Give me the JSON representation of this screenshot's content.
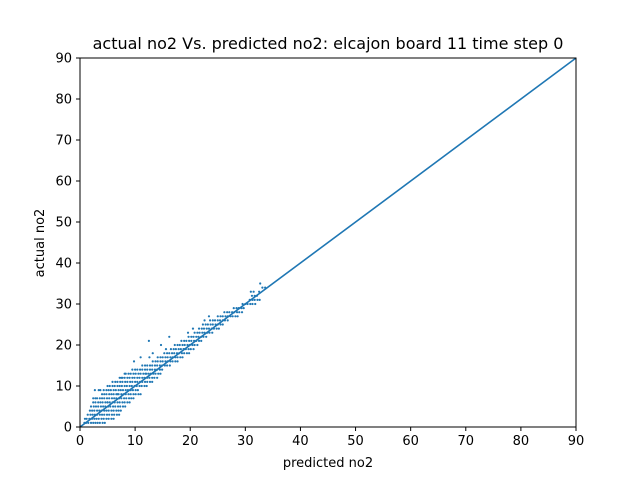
{
  "chart_data": {
    "type": "scatter",
    "title": "actual no2 Vs. predicted no2: elcajon board 11 time step 0",
    "xlabel": "predicted no2",
    "ylabel": "actual no2",
    "xlim": [
      0,
      90
    ],
    "ylim": [
      0,
      90
    ],
    "xticks": [
      0,
      10,
      20,
      30,
      40,
      50,
      60,
      70,
      80,
      90
    ],
    "yticks": [
      0,
      10,
      20,
      30,
      40,
      50,
      60,
      70,
      80,
      90
    ],
    "grid": false,
    "color": "#1f77b4",
    "reference_line": {
      "x": [
        0,
        90
      ],
      "y": [
        0,
        90
      ]
    },
    "points": [
      [
        1.1,
        1
      ],
      [
        1.5,
        1
      ],
      [
        2.0,
        1
      ],
      [
        2.4,
        1
      ],
      [
        2.8,
        1
      ],
      [
        3.2,
        1
      ],
      [
        3.6,
        1
      ],
      [
        4.1,
        1
      ],
      [
        4.5,
        1
      ],
      [
        0.8,
        1
      ],
      [
        1.2,
        2
      ],
      [
        1.7,
        2
      ],
      [
        2.2,
        2
      ],
      [
        2.6,
        2
      ],
      [
        3.0,
        2
      ],
      [
        3.4,
        2
      ],
      [
        3.9,
        2
      ],
      [
        4.3,
        2
      ],
      [
        4.8,
        2
      ],
      [
        5.2,
        2
      ],
      [
        5.7,
        2
      ],
      [
        6.1,
        2
      ],
      [
        0.9,
        2
      ],
      [
        1.4,
        3
      ],
      [
        1.9,
        3
      ],
      [
        2.3,
        3
      ],
      [
        2.7,
        3
      ],
      [
        3.1,
        3
      ],
      [
        3.6,
        3
      ],
      [
        4.0,
        3
      ],
      [
        4.4,
        3
      ],
      [
        4.9,
        3
      ],
      [
        5.3,
        3
      ],
      [
        5.8,
        3
      ],
      [
        6.2,
        3
      ],
      [
        6.7,
        3
      ],
      [
        7.1,
        3
      ],
      [
        1.8,
        4
      ],
      [
        2.2,
        4
      ],
      [
        2.6,
        4
      ],
      [
        3.1,
        4
      ],
      [
        3.5,
        4
      ],
      [
        3.9,
        4
      ],
      [
        4.4,
        4
      ],
      [
        4.8,
        4
      ],
      [
        5.2,
        4
      ],
      [
        5.7,
        4
      ],
      [
        6.1,
        4
      ],
      [
        6.6,
        4
      ],
      [
        7.0,
        4
      ],
      [
        7.4,
        4
      ],
      [
        2.0,
        5
      ],
      [
        2.5,
        5
      ],
      [
        2.9,
        5
      ],
      [
        3.3,
        5
      ],
      [
        3.8,
        5
      ],
      [
        4.2,
        5
      ],
      [
        4.6,
        5
      ],
      [
        5.1,
        5
      ],
      [
        5.5,
        5
      ],
      [
        6.0,
        5
      ],
      [
        6.4,
        5
      ],
      [
        6.9,
        5
      ],
      [
        7.3,
        5
      ],
      [
        7.8,
        5
      ],
      [
        8.2,
        5
      ],
      [
        2.4,
        6
      ],
      [
        2.8,
        6
      ],
      [
        3.3,
        6
      ],
      [
        3.7,
        6
      ],
      [
        4.1,
        6
      ],
      [
        4.6,
        6
      ],
      [
        5.0,
        6
      ],
      [
        5.4,
        6
      ],
      [
        5.9,
        6
      ],
      [
        6.3,
        6
      ],
      [
        6.8,
        6
      ],
      [
        7.2,
        6
      ],
      [
        7.7,
        6
      ],
      [
        8.1,
        6
      ],
      [
        8.6,
        6
      ],
      [
        9.0,
        6
      ],
      [
        3.1,
        7
      ],
      [
        3.6,
        7
      ],
      [
        4.0,
        7
      ],
      [
        4.4,
        7
      ],
      [
        4.9,
        7
      ],
      [
        5.3,
        7
      ],
      [
        5.8,
        7
      ],
      [
        6.2,
        7
      ],
      [
        6.6,
        7
      ],
      [
        7.1,
        7
      ],
      [
        7.5,
        7
      ],
      [
        8.0,
        7
      ],
      [
        8.4,
        7
      ],
      [
        8.9,
        7
      ],
      [
        9.3,
        7
      ],
      [
        9.7,
        7
      ],
      [
        2.4,
        7
      ],
      [
        2.8,
        7
      ],
      [
        4.0,
        8
      ],
      [
        4.4,
        8
      ],
      [
        4.8,
        8
      ],
      [
        5.3,
        8
      ],
      [
        5.7,
        8
      ],
      [
        6.1,
        8
      ],
      [
        6.6,
        8
      ],
      [
        7.0,
        8
      ],
      [
        7.5,
        8
      ],
      [
        7.9,
        8
      ],
      [
        8.3,
        8
      ],
      [
        8.8,
        8
      ],
      [
        9.2,
        8
      ],
      [
        9.7,
        8
      ],
      [
        10.1,
        8
      ],
      [
        10.6,
        8
      ],
      [
        11.0,
        8
      ],
      [
        4.3,
        9
      ],
      [
        4.8,
        9
      ],
      [
        5.2,
        9
      ],
      [
        5.6,
        9
      ],
      [
        6.1,
        9
      ],
      [
        6.5,
        9
      ],
      [
        7.0,
        9
      ],
      [
        7.4,
        9
      ],
      [
        7.8,
        9
      ],
      [
        8.3,
        9
      ],
      [
        8.7,
        9
      ],
      [
        9.2,
        9
      ],
      [
        9.6,
        9
      ],
      [
        10.1,
        9
      ],
      [
        10.5,
        9
      ],
      [
        3.7,
        9
      ],
      [
        5.0,
        10
      ],
      [
        5.4,
        10
      ],
      [
        5.9,
        10
      ],
      [
        6.3,
        10
      ],
      [
        6.8,
        10
      ],
      [
        7.2,
        10
      ],
      [
        7.6,
        10
      ],
      [
        8.1,
        10
      ],
      [
        8.5,
        10
      ],
      [
        9.0,
        10
      ],
      [
        9.4,
        10
      ],
      [
        9.9,
        10
      ],
      [
        10.3,
        10
      ],
      [
        10.8,
        10
      ],
      [
        11.2,
        10
      ],
      [
        11.7,
        10
      ],
      [
        12.1,
        10
      ],
      [
        5.9,
        11
      ],
      [
        6.4,
        11
      ],
      [
        6.8,
        11
      ],
      [
        7.3,
        11
      ],
      [
        7.7,
        11
      ],
      [
        8.2,
        11
      ],
      [
        8.6,
        11
      ],
      [
        9.1,
        11
      ],
      [
        9.5,
        11
      ],
      [
        10.0,
        11
      ],
      [
        10.4,
        11
      ],
      [
        10.9,
        11
      ],
      [
        11.3,
        11
      ],
      [
        11.8,
        11
      ],
      [
        12.2,
        11
      ],
      [
        12.7,
        11
      ],
      [
        13.1,
        11
      ],
      [
        7.2,
        12
      ],
      [
        7.7,
        12
      ],
      [
        8.1,
        12
      ],
      [
        8.6,
        12
      ],
      [
        9.0,
        12
      ],
      [
        9.5,
        12
      ],
      [
        9.9,
        12
      ],
      [
        10.4,
        12
      ],
      [
        10.8,
        12
      ],
      [
        11.3,
        12
      ],
      [
        11.7,
        12
      ],
      [
        12.2,
        12
      ],
      [
        12.6,
        12
      ],
      [
        13.1,
        12
      ],
      [
        13.5,
        12
      ],
      [
        14.0,
        12
      ],
      [
        8.3,
        13
      ],
      [
        8.8,
        13
      ],
      [
        9.2,
        13
      ],
      [
        9.7,
        13
      ],
      [
        10.1,
        13
      ],
      [
        10.6,
        13
      ],
      [
        11.0,
        13
      ],
      [
        11.5,
        13
      ],
      [
        11.9,
        13
      ],
      [
        12.4,
        13
      ],
      [
        12.8,
        13
      ],
      [
        13.3,
        13
      ],
      [
        13.7,
        13
      ],
      [
        14.2,
        13
      ],
      [
        14.6,
        13
      ],
      [
        9.5,
        14
      ],
      [
        10.0,
        14
      ],
      [
        10.4,
        14
      ],
      [
        10.9,
        14
      ],
      [
        11.3,
        14
      ],
      [
        11.8,
        14
      ],
      [
        12.2,
        14
      ],
      [
        12.7,
        14
      ],
      [
        13.1,
        14
      ],
      [
        13.6,
        14
      ],
      [
        14.0,
        14
      ],
      [
        14.5,
        14
      ],
      [
        14.9,
        14
      ],
      [
        11.3,
        15
      ],
      [
        11.8,
        15
      ],
      [
        12.2,
        15
      ],
      [
        12.7,
        15
      ],
      [
        13.1,
        15
      ],
      [
        13.6,
        15
      ],
      [
        14.0,
        15
      ],
      [
        14.5,
        15
      ],
      [
        14.9,
        15
      ],
      [
        15.4,
        15
      ],
      [
        15.8,
        15
      ],
      [
        16.3,
        15
      ],
      [
        13.2,
        16
      ],
      [
        13.7,
        16
      ],
      [
        14.1,
        16
      ],
      [
        14.6,
        16
      ],
      [
        15.0,
        16
      ],
      [
        15.5,
        16
      ],
      [
        15.9,
        16
      ],
      [
        16.4,
        16
      ],
      [
        16.8,
        16
      ],
      [
        17.3,
        16
      ],
      [
        17.7,
        16
      ],
      [
        14.1,
        17
      ],
      [
        14.6,
        17
      ],
      [
        15.0,
        17
      ],
      [
        15.5,
        17
      ],
      [
        15.9,
        17
      ],
      [
        16.4,
        17
      ],
      [
        16.8,
        17
      ],
      [
        17.3,
        17
      ],
      [
        17.7,
        17
      ],
      [
        18.2,
        17
      ],
      [
        18.6,
        17
      ],
      [
        15.3,
        18
      ],
      [
        15.8,
        18
      ],
      [
        16.2,
        18
      ],
      [
        16.7,
        18
      ],
      [
        17.1,
        18
      ],
      [
        17.6,
        18
      ],
      [
        18.0,
        18
      ],
      [
        18.5,
        18
      ],
      [
        18.9,
        18
      ],
      [
        19.4,
        18
      ],
      [
        19.8,
        18
      ],
      [
        16.5,
        19
      ],
      [
        17.0,
        19
      ],
      [
        17.4,
        19
      ],
      [
        17.9,
        19
      ],
      [
        18.3,
        19
      ],
      [
        18.8,
        19
      ],
      [
        19.2,
        19
      ],
      [
        19.7,
        19
      ],
      [
        20.1,
        19
      ],
      [
        20.6,
        19
      ],
      [
        17.2,
        20
      ],
      [
        17.7,
        20
      ],
      [
        18.1,
        20
      ],
      [
        18.6,
        20
      ],
      [
        19.0,
        20
      ],
      [
        19.5,
        20
      ],
      [
        19.9,
        20
      ],
      [
        20.4,
        20
      ],
      [
        20.8,
        20
      ],
      [
        21.3,
        20
      ],
      [
        18.4,
        21
      ],
      [
        18.9,
        21
      ],
      [
        19.3,
        21
      ],
      [
        19.8,
        21
      ],
      [
        20.2,
        21
      ],
      [
        20.7,
        21
      ],
      [
        21.1,
        21
      ],
      [
        21.6,
        21
      ],
      [
        22.0,
        21
      ],
      [
        19.7,
        22
      ],
      [
        20.2,
        22
      ],
      [
        20.6,
        22
      ],
      [
        21.1,
        22
      ],
      [
        21.5,
        22
      ],
      [
        22.0,
        22
      ],
      [
        22.4,
        22
      ],
      [
        22.9,
        22
      ],
      [
        20.8,
        23
      ],
      [
        21.3,
        23
      ],
      [
        21.7,
        23
      ],
      [
        22.2,
        23
      ],
      [
        22.6,
        23
      ],
      [
        23.1,
        23
      ],
      [
        23.5,
        23
      ],
      [
        24.0,
        23
      ],
      [
        21.6,
        24
      ],
      [
        22.1,
        24
      ],
      [
        22.5,
        24
      ],
      [
        23.0,
        24
      ],
      [
        23.4,
        24
      ],
      [
        23.9,
        24
      ],
      [
        24.3,
        24
      ],
      [
        24.8,
        24
      ],
      [
        25.2,
        24
      ],
      [
        22.3,
        25
      ],
      [
        22.8,
        25
      ],
      [
        23.2,
        25
      ],
      [
        23.7,
        25
      ],
      [
        24.1,
        25
      ],
      [
        24.6,
        25
      ],
      [
        25.0,
        25
      ],
      [
        25.5,
        25
      ],
      [
        25.9,
        25
      ],
      [
        23.6,
        26
      ],
      [
        24.1,
        26
      ],
      [
        24.5,
        26
      ],
      [
        25.0,
        26
      ],
      [
        25.4,
        26
      ],
      [
        25.9,
        26
      ],
      [
        26.3,
        26
      ],
      [
        26.8,
        26
      ],
      [
        25.0,
        27
      ],
      [
        25.5,
        27
      ],
      [
        25.9,
        27
      ],
      [
        26.4,
        27
      ],
      [
        26.8,
        27
      ],
      [
        27.3,
        27
      ],
      [
        27.7,
        27
      ],
      [
        28.2,
        27
      ],
      [
        28.6,
        27
      ],
      [
        26.2,
        28
      ],
      [
        26.7,
        28
      ],
      [
        27.1,
        28
      ],
      [
        27.6,
        28
      ],
      [
        28.0,
        28
      ],
      [
        28.5,
        28
      ],
      [
        28.9,
        28
      ],
      [
        29.4,
        28
      ],
      [
        27.9,
        29
      ],
      [
        28.4,
        29
      ],
      [
        28.8,
        29
      ],
      [
        29.3,
        29
      ],
      [
        29.7,
        29
      ],
      [
        29.5,
        30
      ],
      [
        30.0,
        30
      ],
      [
        30.4,
        30
      ],
      [
        30.9,
        30
      ],
      [
        31.3,
        30
      ],
      [
        31.8,
        30
      ],
      [
        30.8,
        31
      ],
      [
        31.3,
        31
      ],
      [
        31.7,
        31
      ],
      [
        32.2,
        31
      ],
      [
        32.6,
        31
      ],
      [
        31.2,
        32
      ],
      [
        31.7,
        32
      ],
      [
        32.1,
        32
      ],
      [
        31.0,
        33
      ],
      [
        31.5,
        33
      ],
      [
        32.5,
        33
      ],
      [
        33.1,
        34
      ],
      [
        33.6,
        34
      ],
      [
        32.7,
        35
      ],
      [
        2.7,
        9
      ],
      [
        3.4,
        9
      ],
      [
        7.5,
        12
      ],
      [
        8.1,
        13
      ],
      [
        11.0,
        17
      ],
      [
        12.6,
        17
      ],
      [
        15.6,
        19
      ],
      [
        16.2,
        22
      ],
      [
        12.5,
        21
      ],
      [
        9.8,
        16
      ],
      [
        13.2,
        18
      ],
      [
        14.7,
        20
      ],
      [
        19.6,
        23
      ],
      [
        20.5,
        24
      ],
      [
        22.6,
        26
      ],
      [
        23.4,
        27
      ],
      [
        18.8,
        19
      ],
      [
        12.0,
        13
      ],
      [
        6.8,
        8
      ],
      [
        5.0,
        6
      ]
    ]
  }
}
